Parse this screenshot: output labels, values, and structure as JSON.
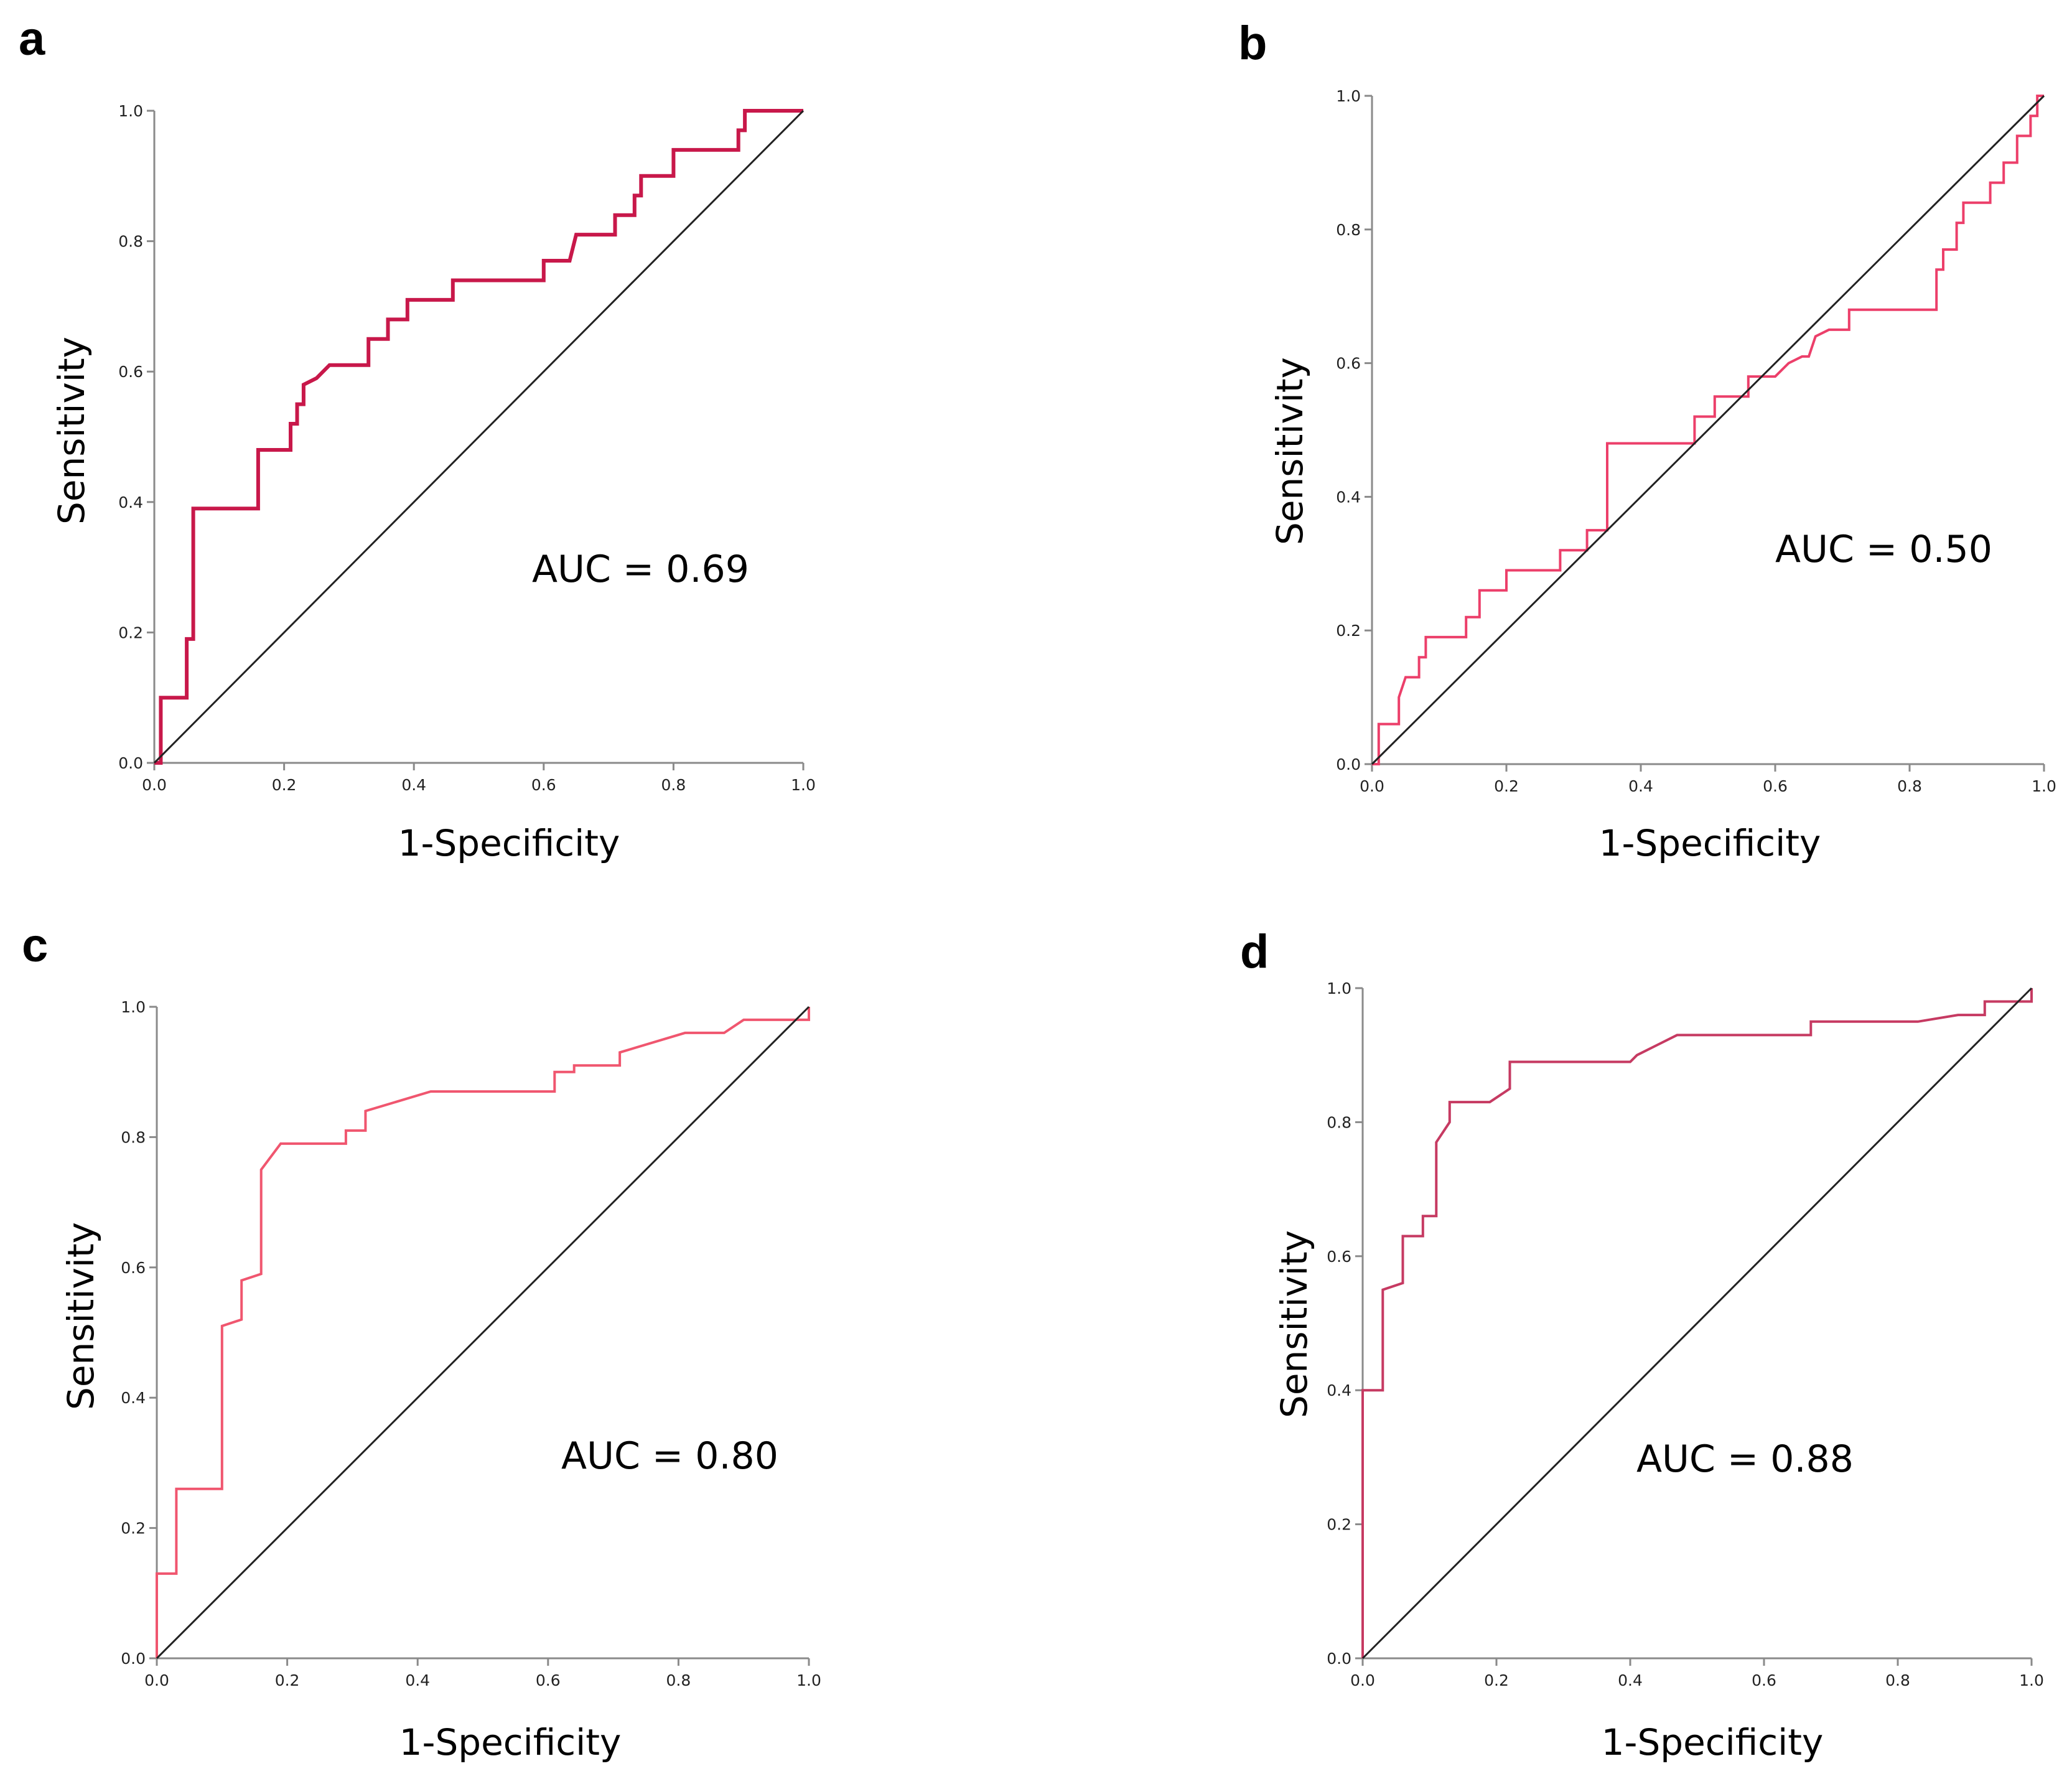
{
  "figure": {
    "panels": [
      "a",
      "b",
      "c",
      "d"
    ]
  },
  "colors": {
    "axis": "#8a8a8a",
    "reference": "#222222",
    "curve_a": "#c8184a",
    "curve_b": "#ec3f6a",
    "curve_c": "#f0566f",
    "curve_d": "#c63a62"
  },
  "chart_data": [
    {
      "type": "line",
      "panel": "a",
      "xlabel": "1-Specificity",
      "ylabel": "Sensitivity",
      "xlim": [
        0,
        1
      ],
      "ylim": [
        0,
        1
      ],
      "xticks": [
        "0.0",
        "0.2",
        "0.4",
        "0.6",
        "0.8",
        "1.0"
      ],
      "yticks": [
        "0.0",
        "0.2",
        "0.4",
        "0.6",
        "0.8",
        "1.0"
      ],
      "annotation": "AUC = 0.69",
      "series": [
        {
          "name": "ROC curve",
          "x": [
            0,
            0.01,
            0.01,
            0.05,
            0.05,
            0.06,
            0.06,
            0.16,
            0.16,
            0.21,
            0.21,
            0.22,
            0.22,
            0.23,
            0.23,
            0.25,
            0.27,
            0.33,
            0.33,
            0.36,
            0.36,
            0.39,
            0.39,
            0.46,
            0.46,
            0.6,
            0.6,
            0.64,
            0.65,
            0.71,
            0.71,
            0.74,
            0.74,
            0.75,
            0.75,
            0.8,
            0.8,
            0.9,
            0.9,
            0.91,
            0.91,
            1.0
          ],
          "y": [
            0,
            0,
            0.1,
            0.1,
            0.19,
            0.19,
            0.39,
            0.39,
            0.48,
            0.48,
            0.52,
            0.52,
            0.55,
            0.55,
            0.58,
            0.59,
            0.61,
            0.61,
            0.65,
            0.65,
            0.68,
            0.68,
            0.71,
            0.71,
            0.74,
            0.74,
            0.77,
            0.77,
            0.81,
            0.81,
            0.84,
            0.84,
            0.87,
            0.87,
            0.9,
            0.9,
            0.94,
            0.94,
            0.97,
            0.97,
            1.0,
            1.0
          ]
        },
        {
          "name": "Reference",
          "x": [
            0,
            1
          ],
          "y": [
            0,
            1
          ]
        }
      ]
    },
    {
      "type": "line",
      "panel": "b",
      "xlabel": "1-Specificity",
      "ylabel": "Sensitivity",
      "xlim": [
        0,
        1
      ],
      "ylim": [
        0,
        1
      ],
      "xticks": [
        "0.0",
        "0.2",
        "0.4",
        "0.6",
        "0.8",
        "1.0"
      ],
      "yticks": [
        "0.0",
        "0.2",
        "0.4",
        "0.6",
        "0.8",
        "1.0"
      ],
      "annotation": "AUC = 0.50",
      "series": [
        {
          "name": "ROC curve",
          "x": [
            0,
            0.01,
            0.01,
            0.04,
            0.04,
            0.05,
            0.07,
            0.07,
            0.08,
            0.08,
            0.09,
            0.09,
            0.14,
            0.14,
            0.16,
            0.16,
            0.2,
            0.2,
            0.22,
            0.22,
            0.28,
            0.28,
            0.32,
            0.32,
            0.34,
            0.34,
            0.35,
            0.35,
            0.48,
            0.48,
            0.51,
            0.51,
            0.56,
            0.56,
            0.6,
            0.62,
            0.64,
            0.65,
            0.66,
            0.68,
            0.71,
            0.71,
            0.84,
            0.84,
            0.85,
            0.85,
            0.87,
            0.87,
            0.88,
            0.88,
            0.92,
            0.92,
            0.94,
            0.94,
            0.96,
            0.96,
            0.98,
            0.98,
            0.99,
            0.99,
            1.0
          ],
          "y": [
            0,
            0,
            0.06,
            0.06,
            0.1,
            0.13,
            0.13,
            0.16,
            0.16,
            0.19,
            0.19,
            0.19,
            0.19,
            0.22,
            0.22,
            0.26,
            0.26,
            0.29,
            0.29,
            0.29,
            0.29,
            0.32,
            0.32,
            0.35,
            0.35,
            0.35,
            0.35,
            0.48,
            0.48,
            0.52,
            0.52,
            0.55,
            0.55,
            0.58,
            0.58,
            0.6,
            0.61,
            0.61,
            0.64,
            0.65,
            0.65,
            0.68,
            0.68,
            0.74,
            0.74,
            0.77,
            0.77,
            0.81,
            0.81,
            0.84,
            0.84,
            0.87,
            0.87,
            0.9,
            0.9,
            0.94,
            0.94,
            0.97,
            0.97,
            1.0,
            1.0
          ]
        },
        {
          "name": "Reference",
          "x": [
            0,
            1
          ],
          "y": [
            0,
            1
          ]
        }
      ]
    },
    {
      "type": "line",
      "panel": "c",
      "xlabel": "1-Specificity",
      "ylabel": "Sensitivity",
      "xlim": [
        0,
        1
      ],
      "ylim": [
        0,
        1
      ],
      "xticks": [
        "0.0",
        "0.2",
        "0.4",
        "0.6",
        "0.8",
        "1.0"
      ],
      "yticks": [
        "0.0",
        "0.2",
        "0.4",
        "0.6",
        "0.8",
        "1.0"
      ],
      "annotation": "AUC = 0.80",
      "series": [
        {
          "name": "ROC curve",
          "x": [
            0,
            0,
            0.03,
            0.03,
            0.1,
            0.1,
            0.13,
            0.13,
            0.16,
            0.16,
            0.19,
            0.29,
            0.29,
            0.32,
            0.32,
            0.42,
            0.61,
            0.61,
            0.64,
            0.64,
            0.71,
            0.71,
            0.81,
            0.87,
            0.9,
            1.0,
            1.0
          ],
          "y": [
            0,
            0.13,
            0.13,
            0.26,
            0.26,
            0.51,
            0.52,
            0.58,
            0.59,
            0.75,
            0.79,
            0.79,
            0.81,
            0.81,
            0.84,
            0.87,
            0.87,
            0.9,
            0.9,
            0.91,
            0.91,
            0.93,
            0.96,
            0.96,
            0.98,
            0.98,
            1.0
          ]
        },
        {
          "name": "Reference",
          "x": [
            0,
            1
          ],
          "y": [
            0,
            1
          ]
        }
      ]
    },
    {
      "type": "line",
      "panel": "d",
      "xlabel": "1-Specificity",
      "ylabel": "Sensitivity",
      "xlim": [
        0,
        1
      ],
      "ylim": [
        0,
        1
      ],
      "xticks": [
        "0.0",
        "0.2",
        "0.4",
        "0.6",
        "0.8",
        "1.0"
      ],
      "yticks": [
        "0.0",
        "0.2",
        "0.4",
        "0.6",
        "0.8",
        "1.0"
      ],
      "annotation": "AUC = 0.88",
      "series": [
        {
          "name": "ROC curve",
          "x": [
            0,
            0,
            0.03,
            0.03,
            0.06,
            0.06,
            0.09,
            0.09,
            0.11,
            0.11,
            0.13,
            0.13,
            0.19,
            0.22,
            0.22,
            0.4,
            0.41,
            0.47,
            0.67,
            0.67,
            0.83,
            0.89,
            0.93,
            0.93,
            1.0,
            1.0
          ],
          "y": [
            0,
            0.4,
            0.4,
            0.55,
            0.56,
            0.63,
            0.63,
            0.66,
            0.66,
            0.77,
            0.8,
            0.83,
            0.83,
            0.85,
            0.89,
            0.89,
            0.9,
            0.93,
            0.93,
            0.95,
            0.95,
            0.96,
            0.96,
            0.98,
            0.98,
            1.0
          ]
        },
        {
          "name": "Reference",
          "x": [
            0,
            1
          ],
          "y": [
            0,
            1
          ]
        }
      ]
    }
  ]
}
